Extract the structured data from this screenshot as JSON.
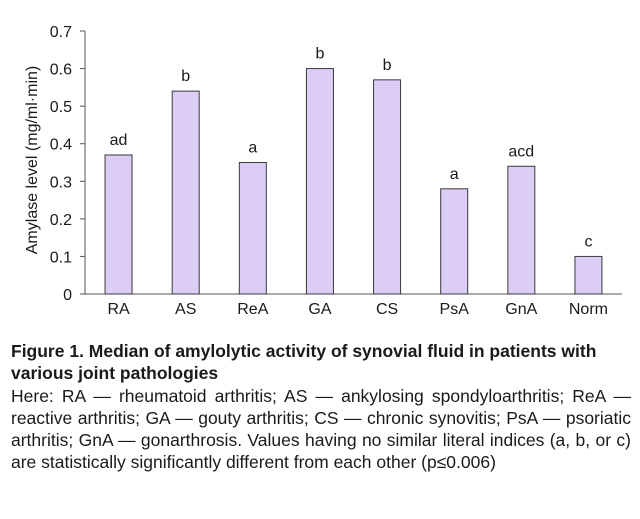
{
  "chart_data": {
    "type": "bar",
    "categories": [
      "RA",
      "AS",
      "ReA",
      "GA",
      "CS",
      "PsA",
      "GnA",
      "Norm"
    ],
    "values": [
      0.37,
      0.54,
      0.35,
      0.6,
      0.57,
      0.28,
      0.34,
      0.1
    ],
    "bar_labels": [
      "ad",
      "b",
      "a",
      "b",
      "b",
      "a",
      "acd",
      "c"
    ],
    "ylabel": "Amylase level (mg/ml·min)",
    "ylim": [
      0,
      0.7
    ],
    "yticks": [
      0,
      0.1,
      0.2,
      0.3,
      0.4,
      0.5,
      0.6,
      0.7
    ],
    "ytick_labels": [
      "0",
      "0.1",
      "0.2",
      "0.3",
      "0.4",
      "0.5",
      "0.6",
      "0.7"
    ],
    "grid": false,
    "bar_color": "#dccdf5",
    "bar_edge_color": "#3a3a3a"
  },
  "caption": {
    "title": "Figure 1. Median of amylolytic activity of synovial fluid in patients with various joint pathologies",
    "body": "Here: RA — rheumatoid arthritis; AS — ankylosing spondyloarthritis; ReA — reactive arthritis; GA — gouty arthritis; CS — chronic synovitis; PsA — psoriatic arthritis; GnA — gonarthrosis. Values having no similar literal indices (a, b, or c) are statistically significantly different from each other (p≤0.006)"
  }
}
